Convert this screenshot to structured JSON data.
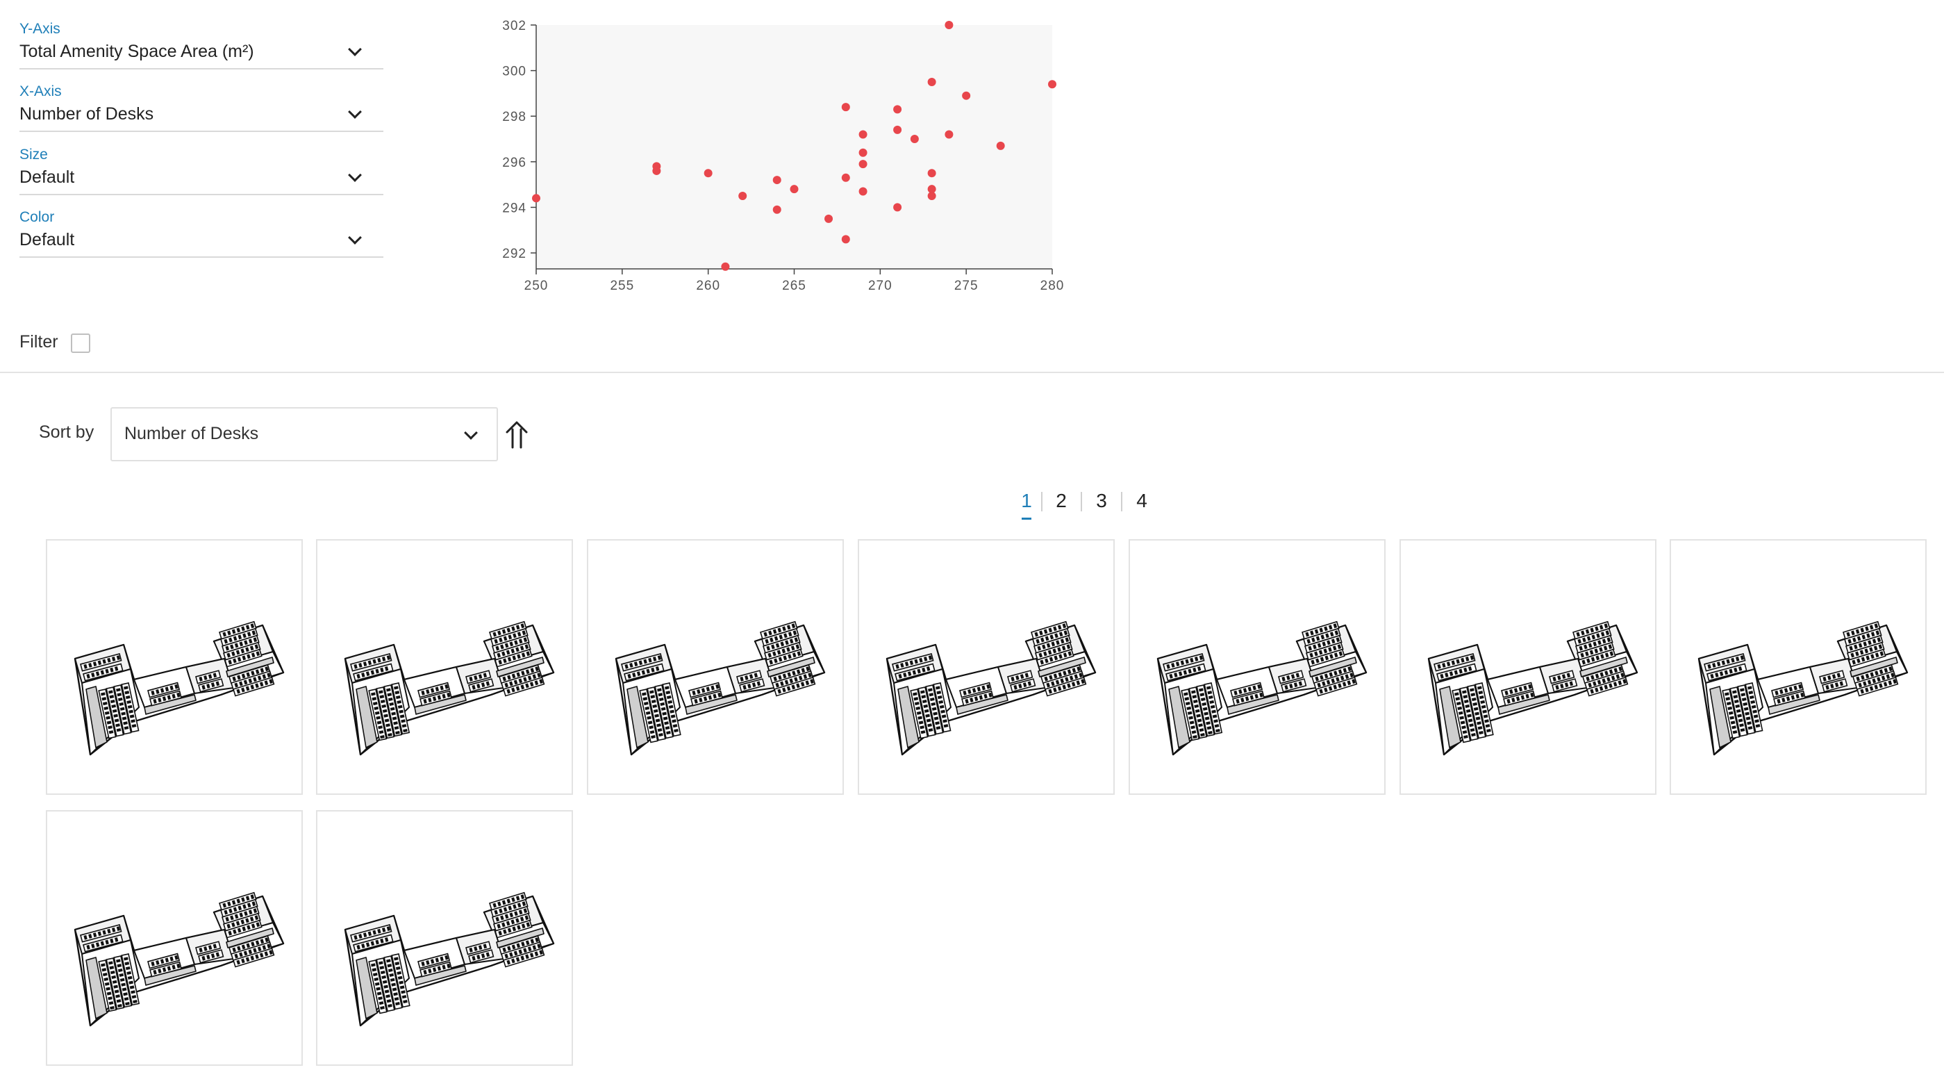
{
  "controls": [
    {
      "label": "Y-Axis",
      "value": "Total Amenity Space Area (m²)"
    },
    {
      "label": "X-Axis",
      "value": "Number of Desks"
    },
    {
      "label": "Size",
      "value": "Default"
    },
    {
      "label": "Color",
      "value": "Default"
    }
  ],
  "filter": {
    "label": "Filter"
  },
  "sort": {
    "label": "Sort by",
    "value": "Number of Desks",
    "direction_icon": "arrow-up-icon"
  },
  "pagination": {
    "pages": [
      "1",
      "2",
      "3",
      "4"
    ],
    "current": "1"
  },
  "results": {
    "count": 9
  },
  "colors": {
    "accent": "#1f7fb8",
    "point": "#e8464c",
    "plot_bg": "#f7f7f7"
  },
  "chart_data": {
    "type": "scatter",
    "xlabel": "",
    "ylabel": "",
    "xlim": [
      250,
      280
    ],
    "ylim": [
      291.3,
      302
    ],
    "x_ticks": [
      "250",
      "255",
      "260",
      "265",
      "270",
      "275",
      "280"
    ],
    "y_ticks": [
      "292",
      "294",
      "296",
      "298",
      "300",
      "302"
    ],
    "grid": false,
    "points": [
      {
        "x": 250,
        "y": 294.4
      },
      {
        "x": 257,
        "y": 295.8
      },
      {
        "x": 257,
        "y": 295.6
      },
      {
        "x": 260,
        "y": 295.5
      },
      {
        "x": 261,
        "y": 291.4
      },
      {
        "x": 262,
        "y": 294.5
      },
      {
        "x": 264,
        "y": 295.2
      },
      {
        "x": 264,
        "y": 293.9
      },
      {
        "x": 265,
        "y": 294.8
      },
      {
        "x": 267,
        "y": 293.5
      },
      {
        "x": 268,
        "y": 298.4
      },
      {
        "x": 268,
        "y": 295.3
      },
      {
        "x": 268,
        "y": 292.6
      },
      {
        "x": 269,
        "y": 297.2
      },
      {
        "x": 269,
        "y": 296.4
      },
      {
        "x": 269,
        "y": 295.9
      },
      {
        "x": 269,
        "y": 294.7
      },
      {
        "x": 271,
        "y": 298.3
      },
      {
        "x": 271,
        "y": 297.4
      },
      {
        "x": 271,
        "y": 294.0
      },
      {
        "x": 272,
        "y": 297.0
      },
      {
        "x": 273,
        "y": 299.5
      },
      {
        "x": 273,
        "y": 295.5
      },
      {
        "x": 273,
        "y": 294.8
      },
      {
        "x": 273,
        "y": 294.5
      },
      {
        "x": 274,
        "y": 302.0
      },
      {
        "x": 274,
        "y": 297.2
      },
      {
        "x": 275,
        "y": 298.9
      },
      {
        "x": 277,
        "y": 296.7
      },
      {
        "x": 280,
        "y": 299.4
      }
    ]
  }
}
